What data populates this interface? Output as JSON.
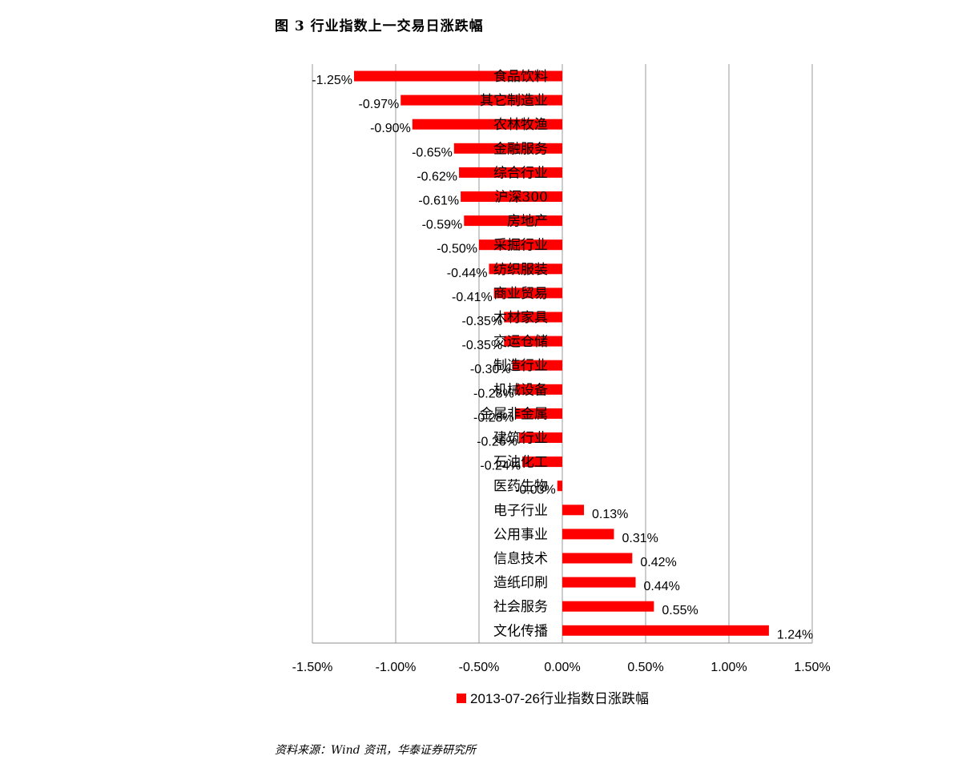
{
  "figure_title": "图 3   行业指数上一交易日涨跌幅",
  "source_note": "资料来源：Wind 资讯，华泰证券研究所",
  "chart_data": {
    "type": "bar",
    "orientation": "horizontal",
    "categories": [
      "食品饮料",
      "其它制造业",
      "农林牧渔",
      "金融服务",
      "综合行业",
      "沪深300",
      "房地产",
      "采掘行业",
      "纺织服装",
      "商业贸易",
      "木材家具",
      "交运仓储",
      "制造行业",
      "机械设备",
      "金属非金属",
      "建筑行业",
      "石油化工",
      "医药生物",
      "电子行业",
      "公用事业",
      "信息技术",
      "造纸印刷",
      "社会服务",
      "文化传播"
    ],
    "series": [
      {
        "name": "2013-07-26行业指数日涨跌幅",
        "color": "#ff0000",
        "values": [
          -1.25,
          -0.97,
          -0.9,
          -0.65,
          -0.62,
          -0.61,
          -0.59,
          -0.5,
          -0.44,
          -0.41,
          -0.35,
          -0.35,
          -0.3,
          -0.28,
          -0.28,
          -0.26,
          -0.24,
          -0.03,
          0.13,
          0.31,
          0.42,
          0.44,
          0.55,
          1.24
        ],
        "labels": [
          "-1.25%",
          "-0.97%",
          "-0.90%",
          "-0.65%",
          "-0.62%",
          "-0.61%",
          "-0.59%",
          "-0.50%",
          "-0.44%",
          "-0.41%",
          "-0.35%",
          "-0.35%",
          "-0.30%",
          "-0.28%",
          "-0.28%",
          "-0.26%",
          "-0.24%",
          "-0.03%",
          "0.13%",
          "0.31%",
          "0.42%",
          "0.44%",
          "0.55%",
          "1.24%"
        ]
      }
    ],
    "xlim": [
      -1.5,
      1.5
    ],
    "xticks": [
      -1.5,
      -1.0,
      -0.5,
      0.0,
      0.5,
      1.0,
      1.5
    ],
    "xtick_labels": [
      "-1.50%",
      "-1.00%",
      "-0.50%",
      "0.00%",
      "0.50%",
      "1.00%",
      "1.50%"
    ],
    "grid": true,
    "legend_position": "bottom"
  }
}
